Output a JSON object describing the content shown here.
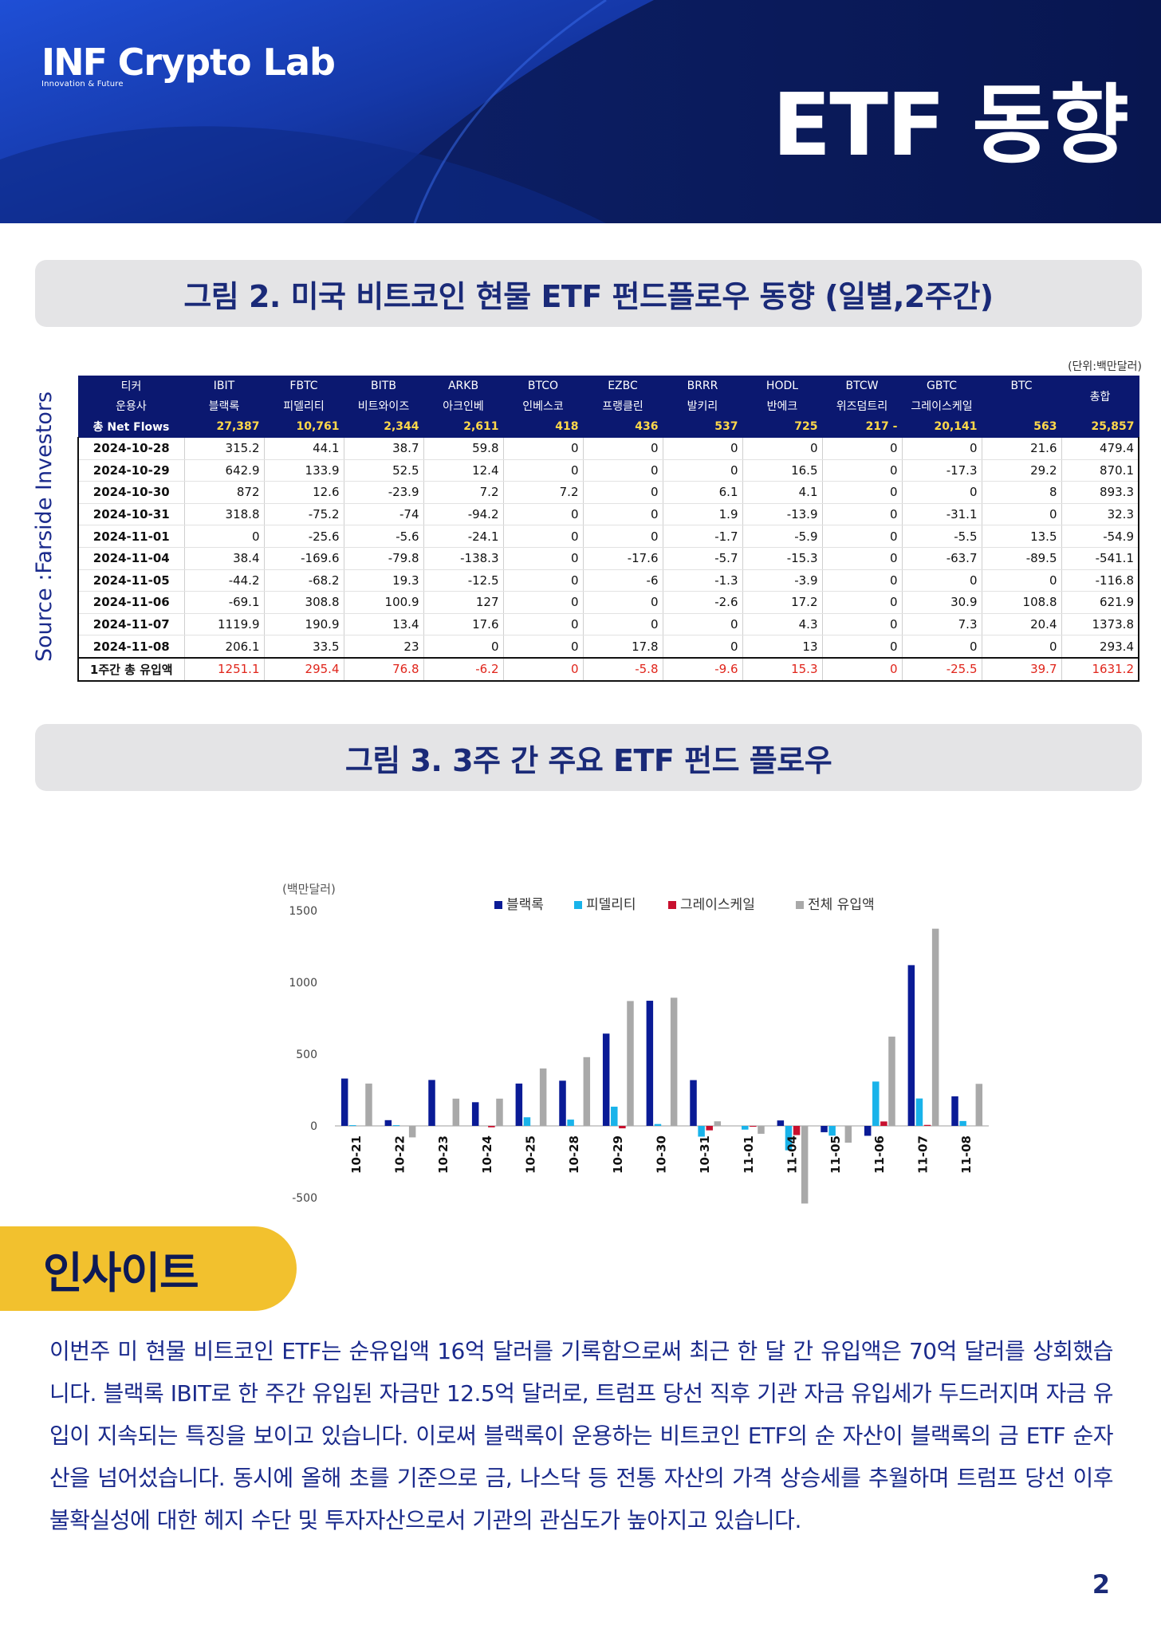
{
  "header": {
    "logo_main": "INF",
    "logo_rest": "Crypto Lab",
    "logo_sub": "Innovation & Future",
    "title": "ETF 동향"
  },
  "figure2": {
    "title": "그림 2.  미국 비트코인 현물 ETF 펀드플로우 동향 (일별,2주간)",
    "unit_note": "(단위:백만달러)",
    "source": "Source :Farside Investors",
    "ticker_label": "티커",
    "manager_label": "운용사",
    "netflows_label": "총 Net Flows",
    "total_label": "총합",
    "tickers": [
      "IBIT",
      "FBTC",
      "BITB",
      "ARKB",
      "BTCO",
      "EZBC",
      "BRRR",
      "HODL",
      "BTCW",
      "GBTC",
      "BTC"
    ],
    "managers": [
      "블랙록",
      "피델리티",
      "비트와이즈",
      "아크인베",
      "인베스코",
      "프랭클린",
      "발키리",
      "반에크",
      "위즈덤트리",
      "그레이스케일",
      ""
    ],
    "net_flows": [
      "27,387",
      "10,761",
      "2,344",
      "2,611",
      "418",
      "436",
      "537",
      "725",
      "217  -",
      "20,141",
      "563",
      "25,857"
    ],
    "rows": [
      {
        "date": "2024-10-28",
        "values": [
          "315.2",
          "44.1",
          "38.7",
          "59.8",
          "0",
          "0",
          "0",
          "0",
          "0",
          "0",
          "21.6",
          "479.4"
        ]
      },
      {
        "date": "2024-10-29",
        "values": [
          "642.9",
          "133.9",
          "52.5",
          "12.4",
          "0",
          "0",
          "0",
          "16.5",
          "0",
          "-17.3",
          "29.2",
          "870.1"
        ]
      },
      {
        "date": "2024-10-30",
        "values": [
          "872",
          "12.6",
          "-23.9",
          "7.2",
          "7.2",
          "0",
          "6.1",
          "4.1",
          "0",
          "0",
          "8",
          "893.3"
        ]
      },
      {
        "date": "2024-10-31",
        "values": [
          "318.8",
          "-75.2",
          "-74",
          "-94.2",
          "0",
          "0",
          "1.9",
          "-13.9",
          "0",
          "-31.1",
          "0",
          "32.3"
        ]
      },
      {
        "date": "2024-11-01",
        "values": [
          "0",
          "-25.6",
          "-5.6",
          "-24.1",
          "0",
          "0",
          "-1.7",
          "-5.9",
          "0",
          "-5.5",
          "13.5",
          "-54.9"
        ]
      },
      {
        "date": "2024-11-04",
        "values": [
          "38.4",
          "-169.6",
          "-79.8",
          "-138.3",
          "0",
          "-17.6",
          "-5.7",
          "-15.3",
          "0",
          "-63.7",
          "-89.5",
          "-541.1"
        ]
      },
      {
        "date": "2024-11-05",
        "values": [
          "-44.2",
          "-68.2",
          "19.3",
          "-12.5",
          "0",
          "-6",
          "-1.3",
          "-3.9",
          "0",
          "0",
          "0",
          "-116.8"
        ]
      },
      {
        "date": "2024-11-06",
        "values": [
          "-69.1",
          "308.8",
          "100.9",
          "127",
          "0",
          "0",
          "-2.6",
          "17.2",
          "0",
          "30.9",
          "108.8",
          "621.9"
        ]
      },
      {
        "date": "2024-11-07",
        "values": [
          "1119.9",
          "190.9",
          "13.4",
          "17.6",
          "0",
          "0",
          "0",
          "4.3",
          "0",
          "7.3",
          "20.4",
          "1373.8"
        ]
      },
      {
        "date": "2024-11-08",
        "values": [
          "206.1",
          "33.5",
          "23",
          "0",
          "0",
          "17.8",
          "0",
          "13",
          "0",
          "0",
          "0",
          "293.4"
        ]
      }
    ],
    "weekly_total": {
      "label": "1주간 총 유입액",
      "values": [
        "1251.1",
        "295.4",
        "76.8",
        "-6.2",
        "0",
        "-5.8",
        "-9.6",
        "15.3",
        "0",
        "-25.5",
        "39.7",
        "1631.2"
      ]
    }
  },
  "figure3": {
    "title": "그림 3.  3주 간 주요 ETF 펀드 플로우"
  },
  "chart_data": {
    "type": "bar",
    "title": "",
    "ylabel": "(백만달러)",
    "xlabel": "",
    "ylim": [
      -500,
      1500
    ],
    "yticks": [
      1500,
      1000,
      500,
      0,
      -500
    ],
    "grid": false,
    "legend_position": "top",
    "categories": [
      "10-21",
      "10-22",
      "10-23",
      "10-24",
      "10-25",
      "10-28",
      "10-29",
      "10-30",
      "10-31",
      "11-01",
      "11-04",
      "11-05",
      "11-06",
      "11-07",
      "11-08"
    ],
    "series": [
      {
        "name": "블랙록",
        "color": "#0a1b96",
        "values": [
          330,
          40,
          320,
          165,
          295,
          315,
          643,
          872,
          319,
          0,
          38,
          -44,
          -69,
          1120,
          206
        ]
      },
      {
        "name": "피델리티",
        "color": "#19b3ea",
        "values": [
          5,
          5,
          0,
          0,
          60,
          44,
          134,
          13,
          -75,
          -26,
          -170,
          -68,
          309,
          191,
          34
        ]
      },
      {
        "name": "그레이스케일",
        "color": "#c8102e",
        "values": [
          0,
          0,
          0,
          -10,
          0,
          0,
          -17,
          0,
          -31,
          -6,
          -64,
          0,
          31,
          7,
          0
        ]
      },
      {
        "name": "전체 유입액",
        "color": "#a9a9a9",
        "values": [
          295,
          -80,
          190,
          190,
          400,
          479,
          870,
          893,
          32,
          -55,
          -541,
          -117,
          622,
          1374,
          293
        ]
      }
    ]
  },
  "insight": {
    "label": "인사이트",
    "body": "이번주 미 현물 비트코인 ETF는 순유입액 16억 달러를 기록함으로써 최근 한 달 간 유입액은 70억 달러를 상회했습니다. 블랙록 IBIT로 한 주간 유입된 자금만 12.5억 달러로, 트럼프 당선 직후 기관 자금 유입세가 두드러지며 자금 유입이 지속되는 특징을 보이고 있습니다. 이로써 블랙록이 운용하는 비트코인 ETF의 순 자산이 블랙록의 금 ETF 순자산을 넘어섰습니다. 동시에 올해 초를 기준으로 금, 나스닥 등 전통 자산의 가격 상승세를 추월하며 트럼프 당선 이후 불확실성에 대한 헤지 수단 및 투자자산으로서 기관의 관심도가 높아지고 있습니다."
  },
  "page_number": "2"
}
